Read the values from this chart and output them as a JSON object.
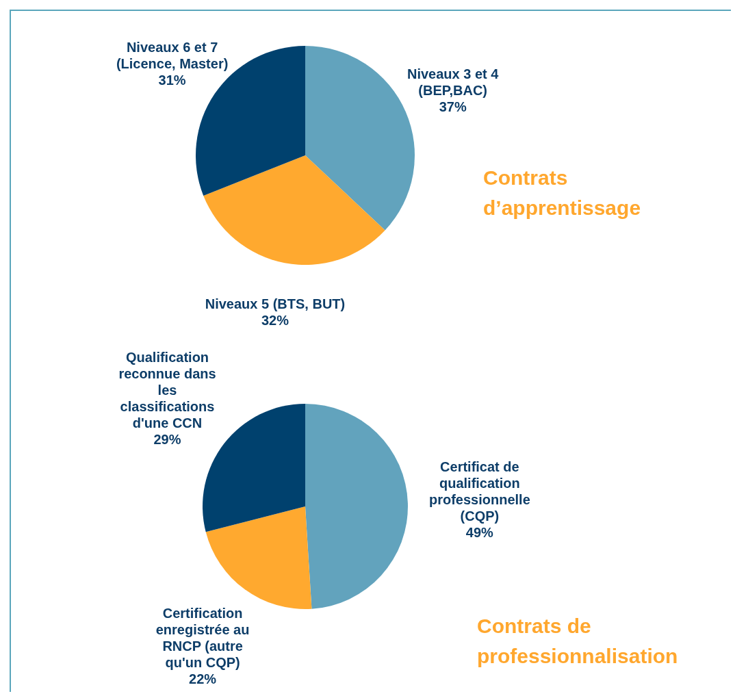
{
  "chart_data": [
    {
      "type": "pie",
      "title": "Contrats d’apprentissage",
      "categories": [
        "Niveaux 3 et 4 (BEP,BAC)",
        "Niveaux 5 (BTS, BUT)",
        "Niveaux 6 et 7 (Licence, Master)"
      ],
      "values": [
        37,
        32,
        31
      ],
      "value_labels": [
        "37%",
        "32%",
        "31%"
      ],
      "colors": [
        "#62a3bd",
        "#ffa92f",
        "#00416e"
      ],
      "legend": false
    },
    {
      "type": "pie",
      "title": "Contrats de professionnalisation",
      "categories": [
        "Certificat de qualification professionnelle (CQP)",
        "Certification enregistrée au RNCP (autre qu'un CQP)",
        "Qualification reconnue dans les classifications d'une CCN"
      ],
      "values": [
        49,
        22,
        29
      ],
      "value_labels": [
        "49%",
        "22%",
        "29%"
      ],
      "colors": [
        "#62a3bd",
        "#ffa92f",
        "#00416e"
      ],
      "legend": false
    }
  ]
}
